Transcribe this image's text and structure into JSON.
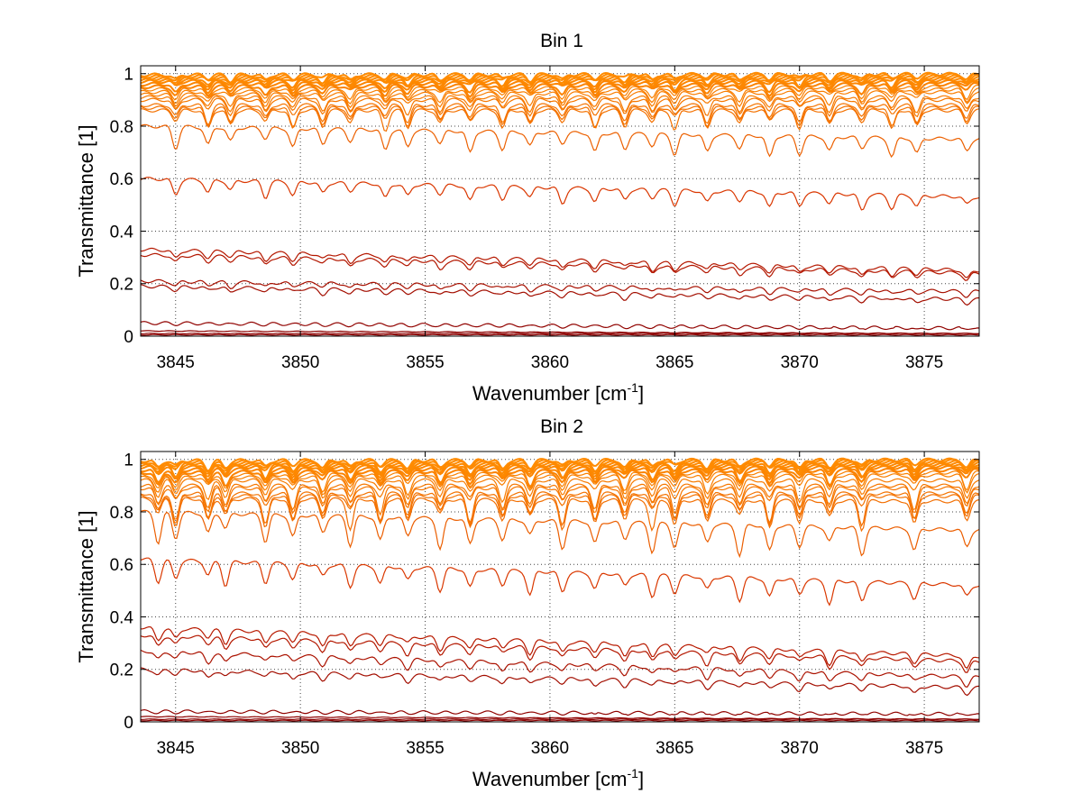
{
  "chart_data": [
    {
      "type": "line",
      "title": "Bin 1",
      "xlabel": "Wavenumber [cm",
      "xlabel_sup": "-1",
      "xlabel_end": "]",
      "ylabel": "Transmittance [1]",
      "xlim": [
        3843.6,
        3877.2
      ],
      "ylim": [
        0,
        1.03
      ],
      "xticks": [
        3845,
        3850,
        3855,
        3860,
        3865,
        3870,
        3875
      ],
      "xtick_labels": [
        "3845",
        "3850",
        "3855",
        "3860",
        "3865",
        "3870",
        "3875"
      ],
      "yticks": [
        0,
        0.2,
        0.4,
        0.6,
        0.8,
        1
      ],
      "ytick_labels": [
        "0",
        "0.2",
        "0.4",
        "0.6",
        "0.8",
        "1"
      ],
      "grid": "dotted",
      "n_series": 26,
      "series_levels_at_start": [
        0.005,
        0.01,
        0.02,
        0.05,
        0.19,
        0.21,
        0.31,
        0.33,
        0.6,
        0.8,
        0.86,
        0.87,
        0.88,
        0.9,
        0.91,
        0.92,
        0.93,
        0.94,
        0.95,
        0.96,
        0.97,
        0.975,
        0.98,
        0.985,
        0.99,
        0.995
      ],
      "series_levels_at_end": [
        0.005,
        0.01,
        0.01,
        0.03,
        0.14,
        0.17,
        0.24,
        0.25,
        0.53,
        0.75,
        0.86,
        0.87,
        0.88,
        0.9,
        0.91,
        0.93,
        0.94,
        0.95,
        0.96,
        0.97,
        0.975,
        0.98,
        0.985,
        0.99,
        0.995,
        0.998
      ],
      "dip_wavenumbers": [
        3845.0,
        3846.3,
        3847.2,
        3848.6,
        3849.7,
        3850.9,
        3852.0,
        3853.4,
        3854.3,
        3855.6,
        3856.8,
        3858.1,
        3859.2,
        3860.5,
        3861.8,
        3863.0,
        3864.1,
        3865.0,
        3866.3,
        3867.6,
        3868.8,
        3870.0,
        3871.2,
        3872.5,
        3873.7,
        3874.7,
        3876.7
      ],
      "dip_depth_max": 0.07
    },
    {
      "type": "line",
      "title": "Bin 2",
      "xlabel": "Wavenumber [cm",
      "xlabel_sup": "-1",
      "xlabel_end": "]",
      "ylabel": "Transmittance [1]",
      "xlim": [
        3843.6,
        3877.2
      ],
      "ylim": [
        0,
        1.03
      ],
      "xticks": [
        3845,
        3850,
        3855,
        3860,
        3865,
        3870,
        3875
      ],
      "xtick_labels": [
        "3845",
        "3850",
        "3855",
        "3860",
        "3865",
        "3870",
        "3875"
      ],
      "yticks": [
        0,
        0.2,
        0.4,
        0.6,
        0.8,
        1
      ],
      "ytick_labels": [
        "0",
        "0.2",
        "0.4",
        "0.6",
        "0.8",
        "1"
      ],
      "grid": "dotted",
      "n_series": 26,
      "series_levels_at_start": [
        0.005,
        0.01,
        0.02,
        0.04,
        0.2,
        0.27,
        0.33,
        0.36,
        0.62,
        0.8,
        0.85,
        0.86,
        0.87,
        0.89,
        0.9,
        0.92,
        0.93,
        0.94,
        0.95,
        0.96,
        0.97,
        0.975,
        0.98,
        0.985,
        0.99,
        0.995
      ],
      "series_levels_at_end": [
        0.005,
        0.01,
        0.01,
        0.03,
        0.13,
        0.17,
        0.23,
        0.25,
        0.52,
        0.73,
        0.84,
        0.86,
        0.87,
        0.89,
        0.9,
        0.92,
        0.94,
        0.95,
        0.96,
        0.97,
        0.975,
        0.98,
        0.985,
        0.99,
        0.995,
        0.998
      ],
      "dip_wavenumbers": [
        3844.3,
        3845.0,
        3846.3,
        3847.0,
        3848.6,
        3849.7,
        3850.9,
        3852.0,
        3853.2,
        3854.3,
        3855.6,
        3856.8,
        3858.1,
        3859.2,
        3860.5,
        3861.8,
        3863.0,
        3864.1,
        3865.0,
        3866.3,
        3867.6,
        3868.8,
        3870.0,
        3871.2,
        3872.5,
        3874.6,
        3876.7
      ],
      "dip_depth_max": 0.1
    }
  ],
  "colors": {
    "line_dark": "#8b0000",
    "line_mid": "#d42a00",
    "line_light": "#ff8c00",
    "grid": "#444444",
    "axis": "#000000"
  }
}
